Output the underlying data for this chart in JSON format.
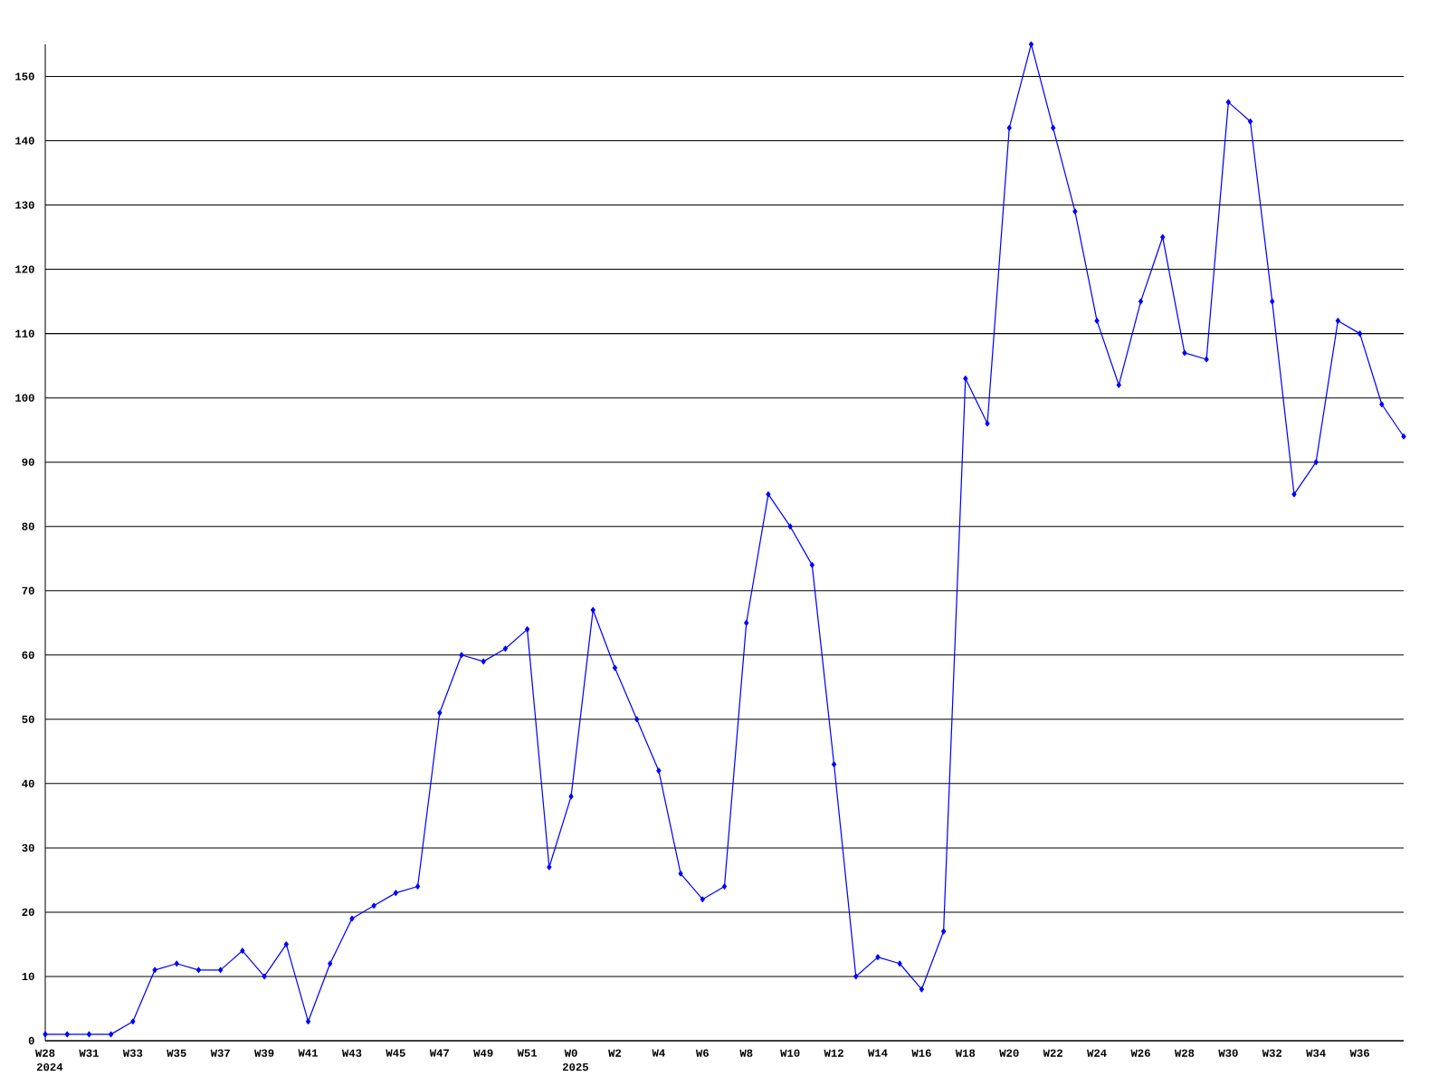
{
  "chart_data": {
    "type": "line",
    "categories": [
      "W28",
      null,
      "W31",
      null,
      "W33",
      null,
      "W35",
      null,
      "W37",
      null,
      "W39",
      null,
      "W41",
      null,
      "W43",
      null,
      "W45",
      null,
      "W47",
      null,
      "W49",
      null,
      "W51",
      null,
      "W0",
      null,
      "W2",
      null,
      "W4",
      null,
      "W6",
      null,
      "W8",
      null,
      "W10",
      null,
      "W12",
      null,
      "W14",
      null,
      "W16",
      null,
      "W18",
      null,
      "W20",
      null,
      "W22",
      null,
      "W24",
      null,
      "W26",
      null,
      "W28",
      null,
      "W30",
      null,
      "W32",
      null,
      "W34",
      null,
      "W36",
      null,
      null
    ],
    "series": [
      {
        "color": "#0000ff",
        "values": [
          1,
          1,
          1,
          1,
          3,
          11,
          12,
          11,
          11,
          14,
          10,
          15,
          3,
          12,
          19,
          21,
          23,
          24,
          51,
          60,
          59,
          61,
          64,
          27,
          38,
          67,
          58,
          50,
          42,
          26,
          22,
          24,
          65,
          85,
          80,
          74,
          43,
          10,
          13,
          12,
          8,
          17,
          103,
          96,
          142,
          155,
          142,
          129,
          112,
          102,
          115,
          125,
          107,
          106,
          146,
          143,
          115,
          85,
          90,
          112,
          110,
          99,
          94
        ]
      }
    ],
    "ylim": [
      0,
      155
    ],
    "yticks": [
      0,
      10,
      20,
      30,
      40,
      50,
      60,
      70,
      80,
      90,
      100,
      110,
      120,
      130,
      140,
      150
    ],
    "grid": "y",
    "marker": "diamond",
    "line_style": "solid",
    "annotations": [
      "2024",
      "2025"
    ]
  }
}
